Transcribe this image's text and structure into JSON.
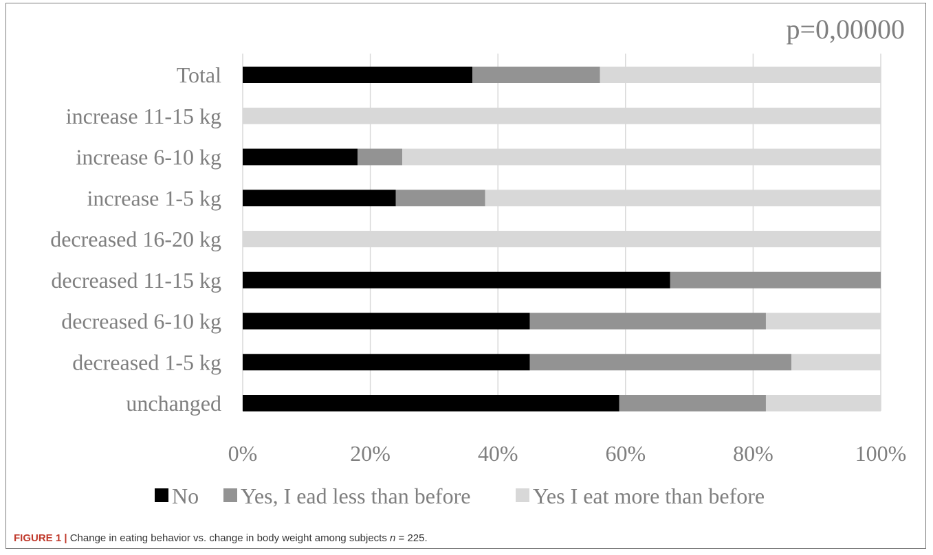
{
  "chart_data": {
    "type": "bar",
    "orientation": "horizontal",
    "stacked": "percent",
    "annotation": "p=0,00000",
    "categories": [
      "Total",
      "increase 11-15 kg",
      "increase 6-10 kg",
      "increase 1-5 kg",
      "decreased 16-20 kg",
      "decreased 11-15 kg",
      "decreased 6-10 kg",
      "decreased 1-5 kg",
      "unchanged"
    ],
    "series": [
      {
        "name": "No",
        "color": "#000000",
        "values": [
          36,
          0,
          18,
          24,
          0,
          67,
          45,
          45,
          59
        ]
      },
      {
        "name": "Yes, I ead less than before",
        "color": "#939393",
        "values": [
          20,
          0,
          7,
          14,
          0,
          33,
          37,
          41,
          23
        ]
      },
      {
        "name": "Yes I eat more than before",
        "color": "#d8d8d8",
        "values": [
          44,
          100,
          75,
          62,
          100,
          0,
          18,
          14,
          18
        ]
      }
    ],
    "xticks": [
      "0%",
      "20%",
      "40%",
      "60%",
      "80%",
      "100%"
    ],
    "xlim": [
      0,
      100
    ],
    "grid": "vertical",
    "legend_position": "bottom"
  },
  "caption": {
    "label": "FIGURE 1 |",
    "text": " Change in eating behavior vs. change in body weight among subjects ",
    "n_symbol": "n",
    "n_value": " = 225."
  }
}
